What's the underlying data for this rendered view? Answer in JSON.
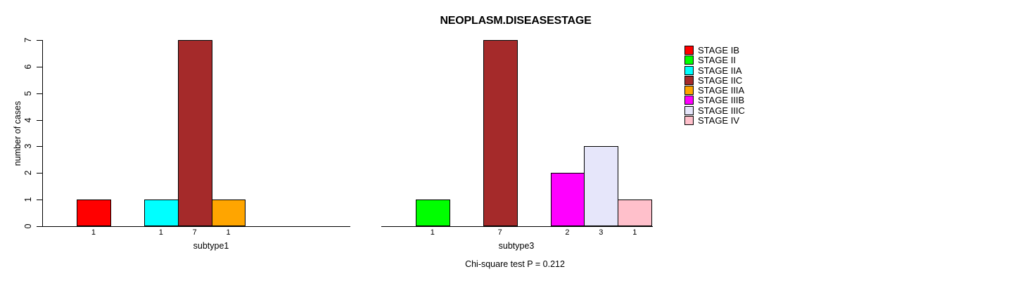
{
  "title": "NEOPLASM.DISEASESTAGE",
  "ylabel": "number of cases",
  "y_axis": {
    "ticks": [
      0,
      1,
      2,
      3,
      4,
      5,
      6,
      7
    ]
  },
  "footer": {
    "text": "Chi-square test P = 0.212"
  },
  "legend": {
    "items": [
      {
        "label": "STAGE IB",
        "color": "#ff0000"
      },
      {
        "label": "STAGE II",
        "color": "#00ff00"
      },
      {
        "label": "STAGE IIA",
        "color": "#00ffff"
      },
      {
        "label": "STAGE IIC",
        "color": "#a52a2a"
      },
      {
        "label": "STAGE IIIA",
        "color": "#ffa500"
      },
      {
        "label": "STAGE IIIB",
        "color": "#ff00ff"
      },
      {
        "label": "STAGE IIIC",
        "color": "#e6e6fa"
      },
      {
        "label": "STAGE IV",
        "color": "#ffc0cb"
      }
    ]
  },
  "panels": [
    {
      "xlabel": "subtype1",
      "bars": [
        {
          "stage": "STAGE IB",
          "slot": 0,
          "value": 1,
          "label": "1",
          "color": "#ff0000"
        },
        {
          "stage": "STAGE IIA",
          "slot": 2,
          "value": 1,
          "label": "1",
          "color": "#00ffff"
        },
        {
          "stage": "STAGE IIC",
          "slot": 3,
          "value": 7,
          "label": "7",
          "color": "#a52a2a"
        },
        {
          "stage": "STAGE IIIA",
          "slot": 4,
          "value": 1,
          "label": "1",
          "color": "#ffa500"
        }
      ]
    },
    {
      "xlabel": "subtype3",
      "bars": [
        {
          "stage": "STAGE II",
          "slot": 1,
          "value": 1,
          "label": "1",
          "color": "#00ff00"
        },
        {
          "stage": "STAGE IIC",
          "slot": 3,
          "value": 7,
          "label": "7",
          "color": "#a52a2a"
        },
        {
          "stage": "STAGE IIIB",
          "slot": 5,
          "value": 2,
          "label": "2",
          "color": "#ff00ff"
        },
        {
          "stage": "STAGE IIIC",
          "slot": 6,
          "value": 3,
          "label": "3",
          "color": "#e6e6fa"
        },
        {
          "stage": "STAGE IV",
          "slot": 7,
          "value": 1,
          "label": "1",
          "color": "#ffc0cb"
        }
      ]
    }
  ],
  "chart_data": [
    {
      "type": "bar",
      "title": "NEOPLASM.DISEASESTAGE",
      "xlabel": "subtype1",
      "ylabel": "number of cases",
      "ylim": [
        0,
        7
      ],
      "grid": false,
      "legend_position": "right",
      "categories": [
        "STAGE IB",
        "STAGE II",
        "STAGE IIA",
        "STAGE IIC",
        "STAGE IIIA",
        "STAGE IIIB",
        "STAGE IIIC",
        "STAGE IV"
      ],
      "values": [
        1,
        0,
        1,
        7,
        1,
        0,
        0,
        0
      ],
      "colors": [
        "#ff0000",
        "#00ff00",
        "#00ffff",
        "#a52a2a",
        "#ffa500",
        "#ff00ff",
        "#e6e6fa",
        "#ffc0cb"
      ],
      "bar_value_labels": [
        "1",
        null,
        "1",
        "7",
        "1",
        null,
        null,
        null
      ]
    },
    {
      "type": "bar",
      "title": "NEOPLASM.DISEASESTAGE",
      "xlabel": "subtype3",
      "ylabel": "number of cases",
      "ylim": [
        0,
        7
      ],
      "grid": false,
      "legend_position": "right",
      "categories": [
        "STAGE IB",
        "STAGE II",
        "STAGE IIA",
        "STAGE IIC",
        "STAGE IIIA",
        "STAGE IIIB",
        "STAGE IIIC",
        "STAGE IV"
      ],
      "values": [
        0,
        1,
        0,
        7,
        0,
        2,
        3,
        1
      ],
      "colors": [
        "#ff0000",
        "#00ff00",
        "#00ffff",
        "#a52a2a",
        "#ffa500",
        "#ff00ff",
        "#e6e6fa",
        "#ffc0cb"
      ],
      "bar_value_labels": [
        null,
        "1",
        null,
        "7",
        null,
        "2",
        "3",
        "1"
      ],
      "annotation": "Chi-square test P = 0.212"
    }
  ]
}
